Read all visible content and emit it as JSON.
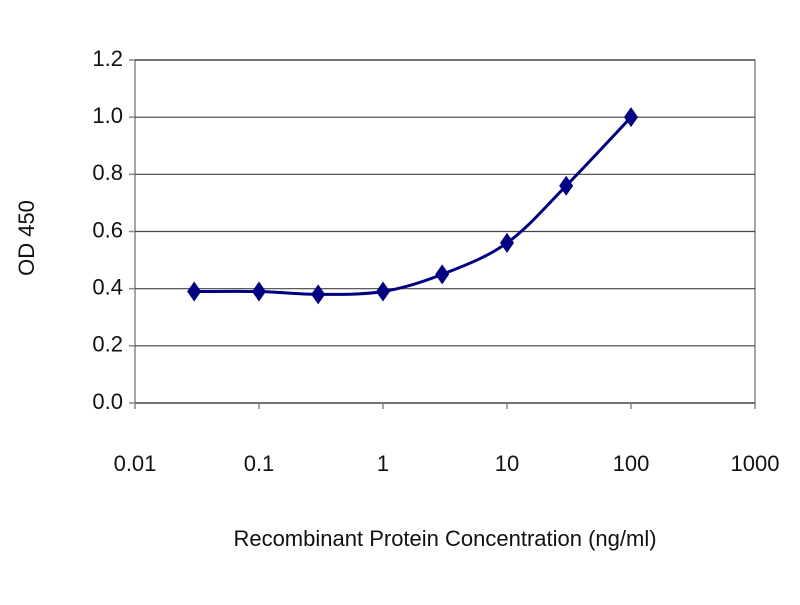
{
  "chart_data": {
    "type": "line",
    "x_label": "Recombinant Protein Concentration (ng/ml)",
    "y_label": "OD 450",
    "x": [
      0.03,
      0.1,
      0.3,
      1,
      3,
      10,
      30,
      100
    ],
    "values": [
      0.39,
      0.39,
      0.38,
      0.39,
      0.45,
      0.56,
      0.76,
      1.0
    ],
    "color": "#000080",
    "log_x": true,
    "xlim": [
      0.01,
      1000
    ],
    "xticks": [
      0.01,
      0.1,
      1,
      10,
      100,
      1000
    ],
    "ylim": [
      0,
      1.2
    ],
    "yticks": [
      {
        "value": 0,
        "label": "0.0"
      },
      0.2,
      0.4,
      0.6,
      0.8,
      {
        "value": 1.0,
        "label": "1.0"
      },
      1.2
    ],
    "grid": true
  }
}
